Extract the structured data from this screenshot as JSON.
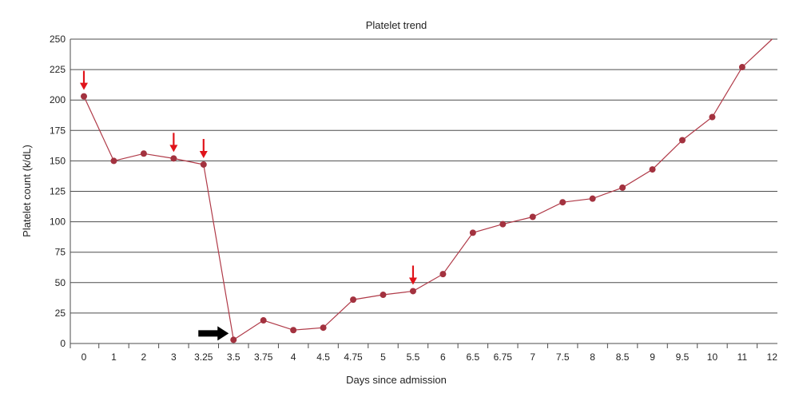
{
  "chart_data": {
    "type": "line",
    "title": "Platelet trend",
    "xlabel": "Days since admission",
    "ylabel": "Platelet count (k/dL)",
    "ylim": [
      0,
      250
    ],
    "yticks": [
      0,
      25,
      50,
      75,
      100,
      125,
      150,
      175,
      200,
      225,
      250
    ],
    "categories": [
      "0",
      "1",
      "2",
      "3",
      "3.25",
      "3.5",
      "3.75",
      "4",
      "4.5",
      "4.75",
      "5",
      "5.5",
      "6",
      "6.5",
      "6.75",
      "7",
      "7.5",
      "8",
      "8.5",
      "9",
      "9.5",
      "10",
      "11",
      "12"
    ],
    "series": [
      {
        "values": [
          203,
          150,
          156,
          152,
          147,
          3,
          19,
          11,
          13,
          36,
          40,
          43,
          57,
          91,
          98,
          104,
          116,
          119,
          128,
          143,
          167,
          186,
          227,
          250
        ]
      }
    ],
    "grid": true,
    "colors": {
      "line": "#b03a48",
      "marker": "#a3323f",
      "medication_arrow": "#e0141b",
      "event_arrow": "#000000"
    },
    "annotations": [
      {
        "type": "red-down-arrow",
        "category": "0"
      },
      {
        "type": "red-down-arrow",
        "category": "3"
      },
      {
        "type": "red-down-arrow",
        "category": "3.25"
      },
      {
        "type": "red-down-arrow",
        "category": "5.5"
      },
      {
        "type": "black-right-arrow",
        "category": "3.5"
      }
    ]
  }
}
